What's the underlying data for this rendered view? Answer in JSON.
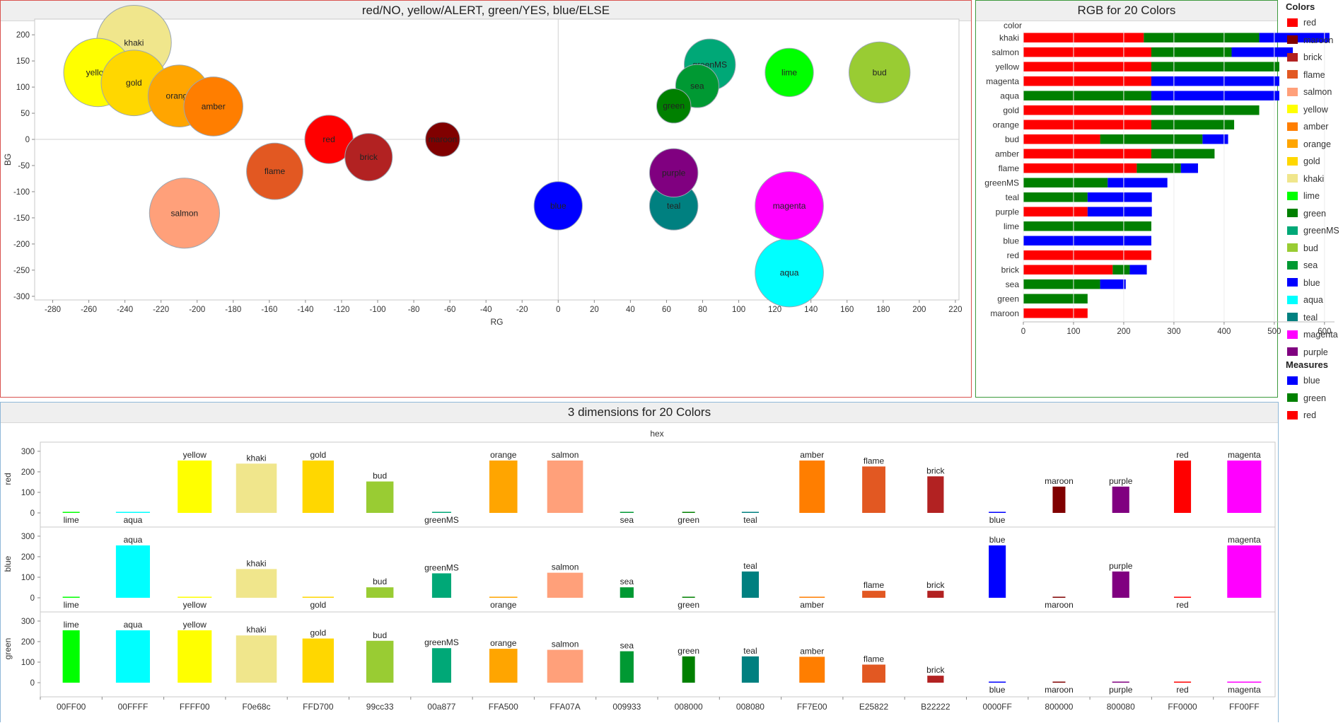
{
  "colors": [
    {
      "name": "red",
      "hex": "FF0000",
      "r": 255,
      "g": 0,
      "b": 0,
      "fill": "#FF0000",
      "RG": -127,
      "BG": 0
    },
    {
      "name": "maroon",
      "hex": "800000",
      "r": 128,
      "g": 0,
      "b": 0,
      "fill": "#800000",
      "RG": -64,
      "BG": 0
    },
    {
      "name": "brick",
      "hex": "B22222",
      "r": 178,
      "g": 34,
      "b": 34,
      "fill": "#B22222",
      "RG": -105,
      "BG": -34
    },
    {
      "name": "flame",
      "hex": "E25822",
      "r": 226,
      "g": 88,
      "b": 34,
      "fill": "#E25822",
      "RG": -157,
      "BG": -61
    },
    {
      "name": "salmon",
      "hex": "FFA07A",
      "r": 255,
      "g": 160,
      "b": 122,
      "fill": "#FFA07A",
      "RG": -207,
      "BG": -141
    },
    {
      "name": "yellow",
      "hex": "FFFF00",
      "r": 255,
      "g": 255,
      "b": 0,
      "fill": "#FFFF00",
      "RG": -255,
      "BG": 128
    },
    {
      "name": "amber",
      "hex": "FF7E00",
      "r": 255,
      "g": 126,
      "b": 0,
      "fill": "#FF7E00",
      "RG": -191,
      "BG": 63
    },
    {
      "name": "orange",
      "hex": "FFA500",
      "r": 255,
      "g": 165,
      "b": 0,
      "fill": "#FFA500",
      "RG": -210,
      "BG": 83
    },
    {
      "name": "gold",
      "hex": "FFD700",
      "r": 255,
      "g": 215,
      "b": 0,
      "fill": "#FFD700",
      "RG": -235,
      "BG": 108
    },
    {
      "name": "khaki",
      "hex": "F0e68c",
      "r": 240,
      "g": 230,
      "b": 140,
      "fill": "#F0E68C",
      "RG": -235,
      "BG": 185
    },
    {
      "name": "lime",
      "hex": "00FF00",
      "r": 0,
      "g": 255,
      "b": 0,
      "fill": "#00FF00",
      "RG": 128,
      "BG": 128
    },
    {
      "name": "green",
      "hex": "008000",
      "r": 0,
      "g": 128,
      "b": 0,
      "fill": "#008000",
      "RG": 64,
      "BG": 64
    },
    {
      "name": "greenMS",
      "hex": "00a877",
      "r": 0,
      "g": 168,
      "b": 119,
      "fill": "#00A877",
      "RG": 84,
      "BG": 143
    },
    {
      "name": "bud",
      "hex": "99cc33",
      "r": 153,
      "g": 204,
      "b": 51,
      "fill": "#99CC33",
      "RG": 178,
      "BG": 128
    },
    {
      "name": "sea",
      "hex": "009933",
      "r": 0,
      "g": 153,
      "b": 51,
      "fill": "#009933",
      "RG": 77,
      "BG": 102
    },
    {
      "name": "blue",
      "hex": "0000FF",
      "r": 0,
      "g": 0,
      "b": 255,
      "fill": "#0000FF",
      "RG": 0,
      "BG": -127
    },
    {
      "name": "aqua",
      "hex": "00FFFF",
      "r": 0,
      "g": 255,
      "b": 255,
      "fill": "#00FFFF",
      "RG": 128,
      "BG": -255
    },
    {
      "name": "teal",
      "hex": "008080",
      "r": 0,
      "g": 128,
      "b": 128,
      "fill": "#008080",
      "RG": 64,
      "BG": -127
    },
    {
      "name": "magenta",
      "hex": "FF00FF",
      "r": 255,
      "g": 0,
      "b": 255,
      "fill": "#FF00FF",
      "RG": 128,
      "BG": -127
    },
    {
      "name": "purple",
      "hex": "800080",
      "r": 128,
      "g": 0,
      "b": 128,
      "fill": "#800080",
      "RG": 64,
      "BG": -64
    }
  ],
  "measure_colors": {
    "blue": "#0000FF",
    "green": "#008000",
    "red": "#FF0000"
  },
  "chart_data": [
    {
      "type": "scatter",
      "title": "red/NO, yellow/ALERT, green/YES, blue/ELSE",
      "xlabel": "RG",
      "ylabel": "BG",
      "xlim": [
        -290,
        222
      ],
      "ylim": [
        -307,
        230
      ],
      "xticks": [
        -280,
        -260,
        -240,
        -220,
        -200,
        -180,
        -160,
        -140,
        -120,
        -100,
        -80,
        -60,
        -40,
        -20,
        0,
        20,
        40,
        60,
        80,
        100,
        120,
        140,
        160,
        180,
        200,
        220
      ],
      "yticks": [
        200,
        150,
        100,
        50,
        0,
        -50,
        -100,
        -150,
        -200,
        -250,
        -300
      ],
      "grid": "zero-lines",
      "points_source": "colors (x=RG, y=BG, size=r+g+b)"
    },
    {
      "type": "bar",
      "orientation": "horizontal-stacked",
      "title": "RGB for 20 Colors",
      "ylabel": "color",
      "categories": [
        "khaki",
        "salmon",
        "yellow",
        "magenta",
        "aqua",
        "gold",
        "orange",
        "bud",
        "amber",
        "flame",
        "greenMS",
        "teal",
        "purple",
        "lime",
        "blue",
        "red",
        "brick",
        "sea",
        "green",
        "maroon"
      ],
      "series": [
        {
          "name": "red",
          "values": [
            240,
            255,
            255,
            255,
            0,
            255,
            255,
            153,
            255,
            226,
            0,
            0,
            128,
            0,
            0,
            255,
            178,
            0,
            0,
            128
          ]
        },
        {
          "name": "green",
          "values": [
            230,
            160,
            255,
            0,
            255,
            215,
            165,
            204,
            126,
            88,
            168,
            128,
            0,
            255,
            0,
            0,
            34,
            153,
            128,
            0
          ]
        },
        {
          "name": "blue",
          "values": [
            140,
            122,
            0,
            255,
            255,
            0,
            0,
            51,
            0,
            34,
            119,
            128,
            128,
            0,
            255,
            0,
            34,
            51,
            0,
            0
          ]
        }
      ],
      "xticks": [
        0,
        100,
        200,
        300,
        400,
        500,
        600
      ],
      "xlim": [
        0,
        620
      ]
    },
    {
      "type": "bar",
      "title": "3 dimensions for 20 Colors",
      "header": "hex",
      "categories": [
        "00FF00",
        "00FFFF",
        "FFFF00",
        "F0e68c",
        "FFD700",
        "99cc33",
        "00a877",
        "FFA500",
        "FFA07A",
        "009933",
        "008000",
        "008080",
        "FF7E00",
        "E25822",
        "B22222",
        "0000FF",
        "800000",
        "800080",
        "FF0000",
        "FF00FF"
      ],
      "category_names": [
        "lime",
        "aqua",
        "yellow",
        "khaki",
        "gold",
        "bud",
        "greenMS",
        "orange",
        "salmon",
        "sea",
        "green",
        "teal",
        "amber",
        "flame",
        "brick",
        "blue",
        "maroon",
        "purple",
        "red",
        "magenta"
      ],
      "rows": [
        "red",
        "blue",
        "green"
      ],
      "yticks": [
        0,
        100,
        200,
        300
      ],
      "ylim": [
        0,
        310
      ]
    }
  ],
  "legend": {
    "colors_title": "Colors",
    "colors_items": [
      "red",
      "maroon",
      "brick",
      "flame",
      "salmon",
      "yellow",
      "amber",
      "orange",
      "gold",
      "khaki",
      "lime",
      "green",
      "greenMS",
      "bud",
      "sea",
      "blue",
      "aqua",
      "teal",
      "magenta",
      "purple"
    ],
    "measures_title": "Measures",
    "measures_items": [
      "blue",
      "green",
      "red"
    ]
  }
}
